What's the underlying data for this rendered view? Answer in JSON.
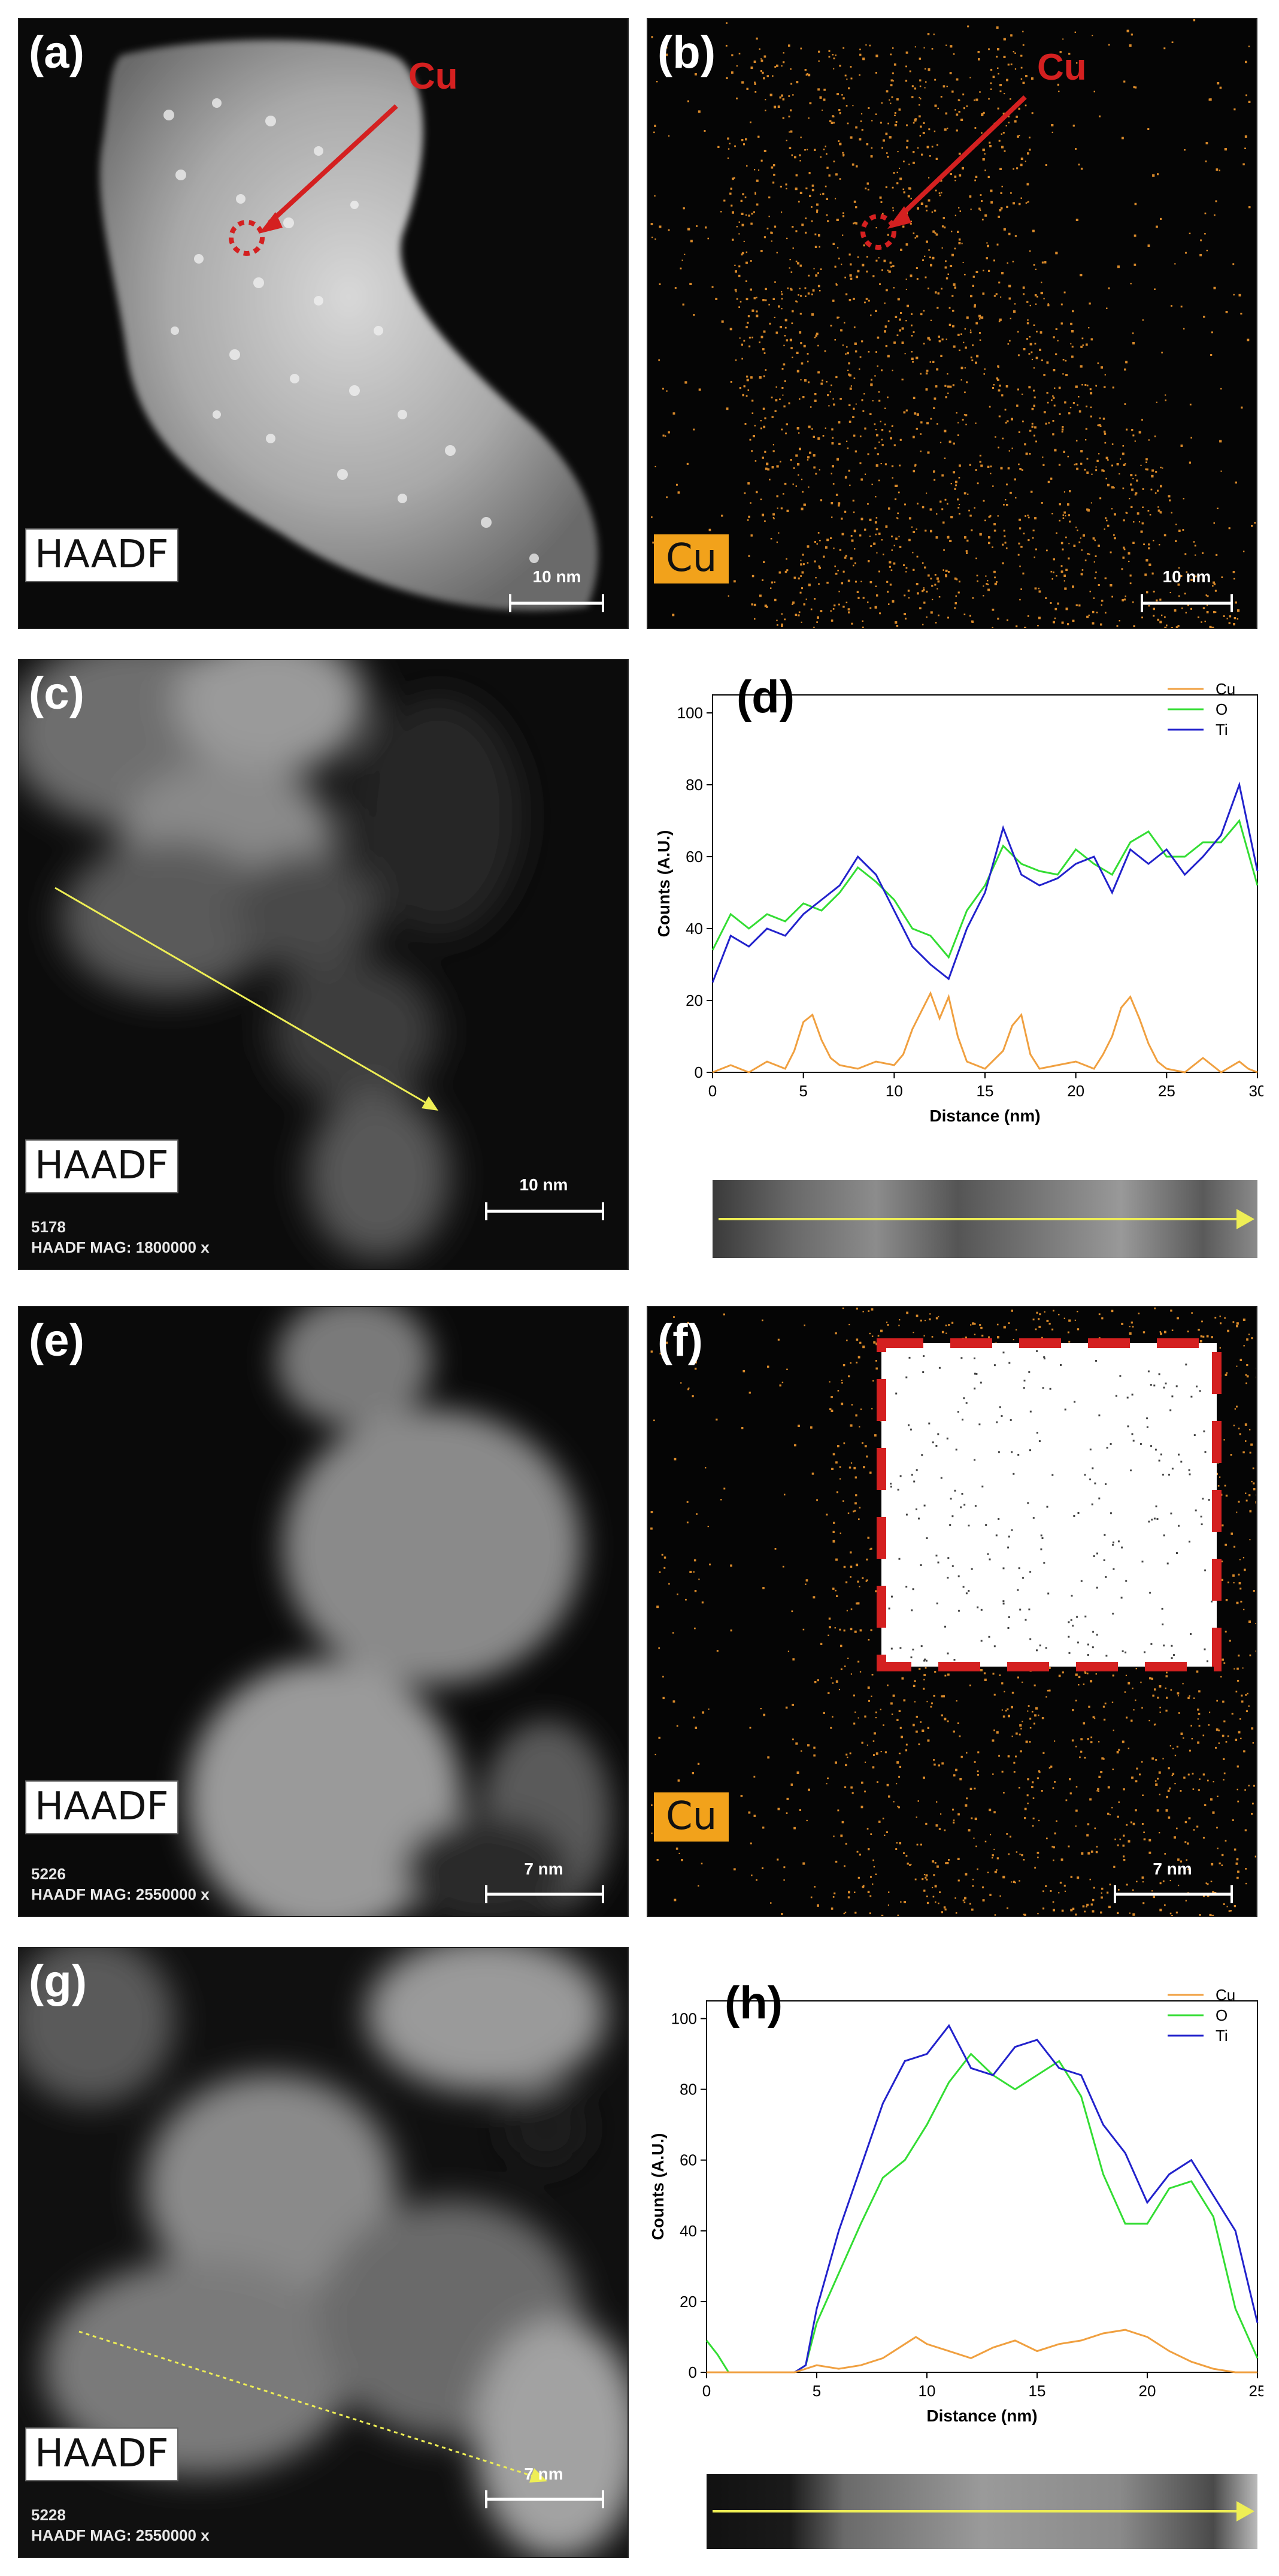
{
  "panels": {
    "a": {
      "label": "(a)",
      "tag": "HAADF",
      "callout": "Cu",
      "scalebar": "10 nm"
    },
    "b": {
      "label": "(b)",
      "tag": "Cu",
      "callout": "Cu",
      "scalebar": "10 nm"
    },
    "c": {
      "label": "(c)",
      "tag": "HAADF",
      "meta_id": "5178",
      "meta_mag": "HAADF  MAG: 1800000 x",
      "scalebar": "10 nm"
    },
    "d": {
      "label": "(d)"
    },
    "e": {
      "label": "(e)",
      "tag": "HAADF",
      "meta_id": "5226",
      "meta_mag": "HAADF  MAG: 2550000 x",
      "scalebar": "7 nm"
    },
    "f": {
      "label": "(f)",
      "tag": "Cu",
      "scalebar": "7 nm"
    },
    "g": {
      "label": "(g)",
      "tag": "HAADF",
      "meta_id": "5228",
      "meta_mag": "HAADF  MAG: 2550000 x",
      "scalebar": "7 nm"
    },
    "h": {
      "label": "(h)"
    }
  },
  "colors": {
    "cu": "#f0a040",
    "o": "#33dd33",
    "ti": "#2222cc",
    "callout_red": "#d42020",
    "arrow_yellow": "#ffff66"
  },
  "chart_data": [
    {
      "panel": "d",
      "type": "line",
      "xlabel": "Distance (nm)",
      "ylabel": "Counts (A.U.)",
      "xlim": [
        0,
        30
      ],
      "ylim": [
        0,
        105
      ],
      "xticks": [
        0,
        5,
        10,
        15,
        20,
        25,
        30
      ],
      "yticks": [
        0,
        20,
        40,
        60,
        80,
        100
      ],
      "legend_position": "top-right",
      "series": [
        {
          "name": "Cu",
          "color": "#f0a040",
          "x": [
            0,
            1,
            2,
            3,
            4,
            4.5,
            5,
            5.5,
            6,
            6.5,
            7,
            8,
            9,
            10,
            10.5,
            11,
            11.5,
            12,
            12.5,
            13,
            13.5,
            14,
            15,
            16,
            16.5,
            17,
            17.5,
            18,
            19,
            20,
            21,
            21.5,
            22,
            22.5,
            23,
            23.5,
            24,
            24.5,
            25,
            26,
            27,
            28,
            29,
            29.5,
            30
          ],
          "y": [
            0,
            2,
            0,
            3,
            1,
            6,
            14,
            16,
            9,
            4,
            2,
            1,
            3,
            2,
            5,
            12,
            17,
            22,
            15,
            21,
            10,
            3,
            1,
            6,
            13,
            16,
            5,
            1,
            2,
            3,
            1,
            5,
            10,
            18,
            21,
            15,
            8,
            3,
            1,
            0,
            4,
            0,
            3,
            1,
            0
          ]
        },
        {
          "name": "O",
          "color": "#33dd33",
          "x": [
            0,
            1,
            2,
            3,
            4,
            5,
            6,
            7,
            8,
            9,
            10,
            11,
            12,
            13,
            14,
            15,
            16,
            17,
            18,
            19,
            20,
            21,
            22,
            23,
            24,
            25,
            26,
            27,
            28,
            29,
            30
          ],
          "y": [
            34,
            44,
            40,
            44,
            42,
            47,
            45,
            50,
            57,
            53,
            48,
            40,
            38,
            32,
            45,
            52,
            63,
            58,
            56,
            55,
            62,
            58,
            55,
            64,
            67,
            60,
            60,
            64,
            64,
            70,
            52
          ]
        },
        {
          "name": "Ti",
          "color": "#2222cc",
          "x": [
            0,
            1,
            2,
            3,
            4,
            5,
            6,
            7,
            8,
            9,
            10,
            11,
            12,
            13,
            14,
            15,
            16,
            17,
            18,
            19,
            20,
            21,
            22,
            23,
            24,
            25,
            26,
            27,
            28,
            29,
            30
          ],
          "y": [
            25,
            38,
            35,
            40,
            38,
            44,
            48,
            52,
            60,
            55,
            45,
            35,
            30,
            26,
            40,
            50,
            68,
            55,
            52,
            54,
            58,
            60,
            50,
            62,
            58,
            62,
            55,
            60,
            66,
            80,
            56
          ]
        }
      ]
    },
    {
      "panel": "h",
      "type": "line",
      "xlabel": "Distance (nm)",
      "ylabel": "Counts (A.U.)",
      "xlim": [
        0,
        25
      ],
      "ylim": [
        0,
        105
      ],
      "xticks": [
        0,
        5,
        10,
        15,
        20,
        25
      ],
      "yticks": [
        0,
        20,
        40,
        60,
        80,
        100
      ],
      "legend_position": "top-right",
      "series": [
        {
          "name": "Cu",
          "color": "#f0a040",
          "x": [
            0,
            2,
            4,
            5,
            6,
            7,
            8,
            9,
            9.5,
            10,
            11,
            12,
            13,
            14,
            15,
            16,
            17,
            18,
            19,
            20,
            21,
            22,
            23,
            24,
            25
          ],
          "y": [
            0,
            0,
            0,
            2,
            1,
            2,
            4,
            8,
            10,
            8,
            6,
            4,
            7,
            9,
            6,
            8,
            9,
            11,
            12,
            10,
            6,
            3,
            1,
            0,
            0
          ]
        },
        {
          "name": "O",
          "color": "#33dd33",
          "x": [
            0,
            0.5,
            1,
            2,
            3,
            4,
            4.5,
            5,
            6,
            7,
            8,
            9,
            10,
            11,
            12,
            13,
            14,
            15,
            16,
            17,
            18,
            19,
            20,
            21,
            22,
            23,
            24,
            25
          ],
          "y": [
            9,
            5,
            0,
            0,
            0,
            0,
            2,
            14,
            28,
            42,
            55,
            60,
            70,
            82,
            90,
            84,
            80,
            84,
            88,
            78,
            56,
            42,
            42,
            52,
            54,
            44,
            18,
            4
          ]
        },
        {
          "name": "Ti",
          "color": "#2222cc",
          "x": [
            0,
            1,
            2,
            3,
            4,
            4.5,
            5,
            6,
            7,
            8,
            9,
            10,
            11,
            12,
            13,
            14,
            15,
            16,
            17,
            18,
            19,
            20,
            21,
            22,
            23,
            24,
            25
          ],
          "y": [
            0,
            0,
            0,
            0,
            0,
            2,
            18,
            40,
            58,
            76,
            88,
            90,
            98,
            86,
            84,
            92,
            94,
            86,
            84,
            70,
            62,
            48,
            56,
            60,
            50,
            40,
            14
          ]
        }
      ]
    }
  ]
}
